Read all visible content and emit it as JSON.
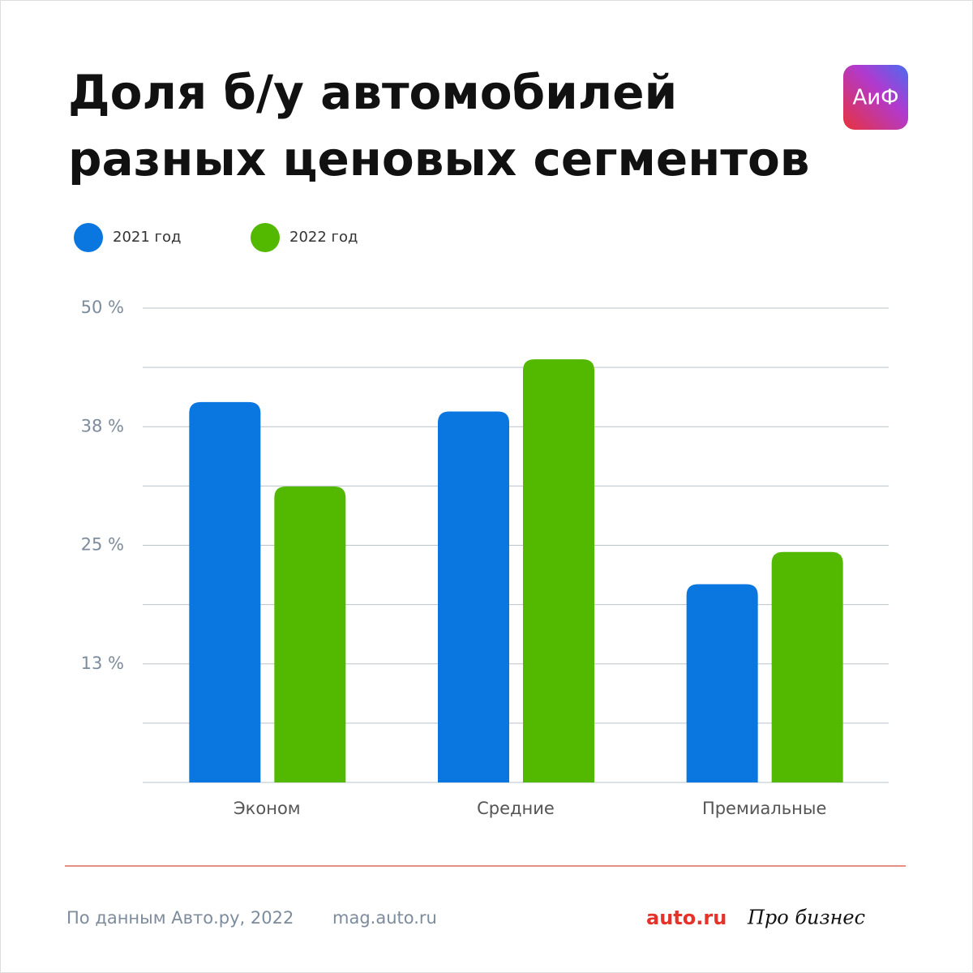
{
  "chart_data": {
    "type": "bar",
    "title_lines": [
      "Доля б/у автомобилей",
      "разных ценовых сегментов"
    ],
    "logo": "АиФ",
    "categories": [
      "Эконом",
      "Средние",
      "Премиальные"
    ],
    "series": [
      {
        "name": "2021 год",
        "color": "#0a76e0",
        "values": [
          40.1,
          39.1,
          20.9
        ]
      },
      {
        "name": "2022 год",
        "color": "#52b800",
        "values": [
          31.2,
          44.6,
          24.3
        ]
      }
    ],
    "ylim": [
      0,
      50
    ],
    "yticks": [
      {
        "value": 12.5,
        "label": "13 %"
      },
      {
        "value": 25,
        "label": "25 %"
      },
      {
        "value": 37.5,
        "label": "38 %"
      },
      {
        "value": 50,
        "label": "50 %"
      }
    ],
    "minor_yticks": [
      0,
      6.25,
      18.75,
      31.25,
      43.75
    ],
    "grid": true,
    "footer": {
      "source": "По данным Авто.ру, 2022",
      "site": "mag.auto.ru",
      "brand": "auto.ru",
      "brand2": "Про бизнес"
    }
  }
}
